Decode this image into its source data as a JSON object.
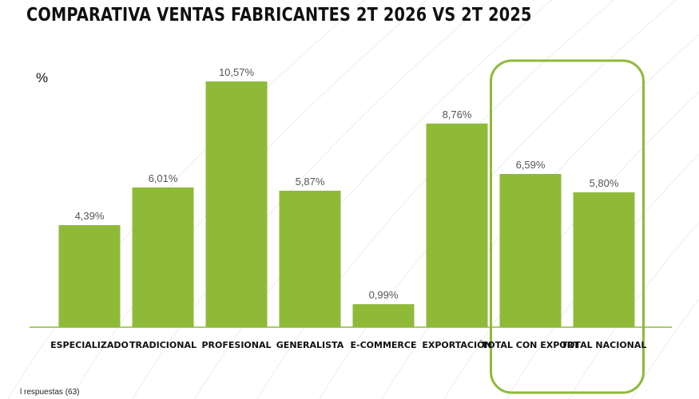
{
  "title": "COMPARATIVA VENTAS FABRICANTES 2T 2026 VS 2T 2025",
  "footnote": "l respuestas (63)",
  "chart_data": {
    "type": "bar",
    "ylabel": "%",
    "categories": [
      "ESPECIALIZADO",
      "TRADICIONAL",
      "PROFESIONAL",
      "GENERALISTA",
      "E-COMMERCE",
      "EXPORTACIÓN",
      "TOTAL CON EXPORT",
      "TOTAL NACIONAL"
    ],
    "values": [
      4.39,
      6.01,
      10.57,
      5.87,
      0.99,
      8.76,
      6.59,
      5.8
    ],
    "data_labels": [
      "4,39%",
      "6,01%",
      "10,57%",
      "5,87%",
      "0,99%",
      "8,76%",
      "6,59%",
      "5,80%"
    ],
    "ylim": [
      0,
      11.5
    ],
    "highlighted_categories": [
      "TOTAL CON EXPORT",
      "TOTAL NACIONAL"
    ],
    "grid": false,
    "colors": {
      "bar": "#8fba38",
      "highlight_frame": "#8fba38",
      "axis": "#8fba38"
    }
  }
}
